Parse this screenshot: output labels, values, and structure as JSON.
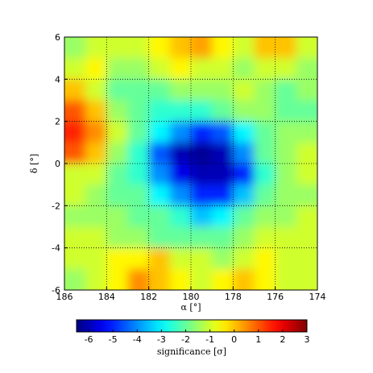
{
  "chart_data": {
    "type": "heatmap",
    "xlabel": "α [°]",
    "ylabel": "δ [°]",
    "x": [
      185.5,
      184.5,
      183.5,
      182.5,
      181.5,
      180.5,
      179.5,
      178.5,
      177.5,
      176.5,
      175.5,
      174.5
    ],
    "y": [
      5.5,
      4.5,
      3.5,
      2.5,
      1.5,
      0.5,
      -0.5,
      -1.5,
      -2.5,
      -3.5,
      -4.5,
      -5.5
    ],
    "values": [
      [
        -1.5,
        -1,
        -1,
        -1,
        -0.5,
        0,
        0.3,
        -0.5,
        -1,
        0,
        0,
        -1
      ],
      [
        -1,
        -0.5,
        -1.5,
        -1.5,
        -1,
        -0.5,
        -1,
        -1,
        -1.5,
        -1,
        -1,
        -1.5
      ],
      [
        0,
        -1,
        -2,
        -2,
        -2,
        -1.5,
        -1.5,
        -1.5,
        -1,
        -1.5,
        -2,
        -1.5
      ],
      [
        1,
        0,
        -1.5,
        -2,
        -2.5,
        -2.5,
        -2.5,
        -2,
        -1.5,
        -1.5,
        -2,
        -2
      ],
      [
        1.5,
        0.5,
        -1,
        -2,
        -3,
        -4,
        -5,
        -4.5,
        -3,
        -2,
        -1.5,
        -1.5
      ],
      [
        1,
        0,
        -1.5,
        -2.5,
        -4.5,
        -6,
        -6.3,
        -6,
        -4,
        -2,
        -1.5,
        -1
      ],
      [
        -1,
        -1,
        -2,
        -2.5,
        -4,
        -5.5,
        -6,
        -6,
        -5,
        -2.5,
        -1.5,
        -1
      ],
      [
        -1,
        -1.5,
        -2,
        -2,
        -3,
        -4,
        -5,
        -5,
        -3.5,
        -2,
        -1.5,
        -1.5
      ],
      [
        -1.5,
        -1.5,
        -1.5,
        -2,
        -2,
        -2.5,
        -3.5,
        -3,
        -2,
        -1.5,
        -1.5,
        -1
      ],
      [
        -1,
        -1,
        -1.5,
        -1.5,
        -2,
        -2,
        -2,
        -2,
        -1.5,
        -1,
        -1,
        -1
      ],
      [
        -1,
        -1,
        -0.5,
        -0.5,
        0,
        -1,
        -1,
        -1.5,
        -1,
        -0.5,
        -1,
        -1
      ],
      [
        -1.5,
        -1,
        -0.5,
        0.5,
        0,
        -0.5,
        -1,
        -0.5,
        0,
        -0.5,
        -1,
        -1
      ]
    ],
    "xlim": [
      186,
      174
    ],
    "xticks": [
      186,
      184,
      182,
      180,
      178,
      176,
      174
    ],
    "ylim": [
      -6,
      6
    ],
    "yticks": [
      -6,
      -4,
      -2,
      0,
      2,
      4,
      6
    ],
    "grid": true,
    "colormap": "jet",
    "colorbar": {
      "label": "significance [σ]",
      "lim": [
        -6.5,
        3
      ],
      "ticks": [
        -6,
        -5,
        -4,
        -3,
        -2,
        -1,
        0,
        1,
        2,
        3
      ]
    }
  }
}
